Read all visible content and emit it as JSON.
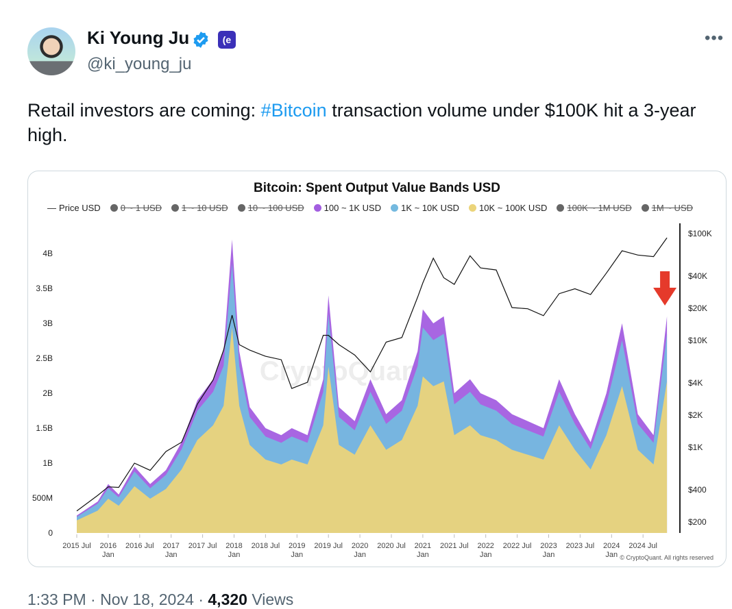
{
  "tweet": {
    "author_name": "Ki Young Ju",
    "handle": "@ki_young_ju",
    "affiliate_badge": "CQ",
    "more_icon": "ellipsis-icon",
    "text_before": "Retail investors are coming: ",
    "hashtag": "#Bitcoin",
    "text_after": " transaction volume under $100K hit a 3-year high.",
    "time": "1:33 PM",
    "date": "Nov 18, 2024",
    "views_count": "4,320",
    "views_label": "Views",
    "sep": "·"
  },
  "colors": {
    "accent": "#1d9bf0",
    "band_100_1k": "#a35ee0",
    "band_1k_10k": "#74b9df",
    "band_10k_100k": "#ebd47a",
    "price": "#111111",
    "arrow": "#e53a2b",
    "disabled": "#666666"
  },
  "chart_data": {
    "type": "area",
    "title": "Bitcoin: Spent Output Value Bands USD",
    "legend": [
      {
        "label": "Price USD",
        "active": true,
        "marker": "line"
      },
      {
        "label": "0 ~ 1 USD",
        "active": false
      },
      {
        "label": "1 ~ 10 USD",
        "active": false
      },
      {
        "label": "10 ~ 100 USD",
        "active": false
      },
      {
        "label": "100 ~ 1K USD",
        "active": true,
        "color": "#a35ee0"
      },
      {
        "label": "1K ~ 10K USD",
        "active": true,
        "color": "#74b9df"
      },
      {
        "label": "10K ~ 100K USD",
        "active": true,
        "color": "#ebd47a"
      },
      {
        "label": "100K ~ 1M USD",
        "active": false
      },
      {
        "label": "1M ~ USD",
        "active": false
      }
    ],
    "legend_placement": "top",
    "left_axis": {
      "ylim": [
        0,
        4200000000.0
      ],
      "ticks": [
        {
          "v": 0,
          "label": "0"
        },
        {
          "v": 500000000.0,
          "label": "500M"
        },
        {
          "v": 1000000000.0,
          "label": "1B"
        },
        {
          "v": 1500000000.0,
          "label": "1.5B"
        },
        {
          "v": 2000000000.0,
          "label": "2B"
        },
        {
          "v": 2500000000.0,
          "label": "2.5B"
        },
        {
          "v": 3000000000.0,
          "label": "3B"
        },
        {
          "v": 3500000000.0,
          "label": "3.5B"
        },
        {
          "v": 4000000000.0,
          "label": "4B"
        }
      ]
    },
    "right_axis": {
      "scale": "log",
      "ticks": [
        {
          "v": 200,
          "label": "$200"
        },
        {
          "v": 400,
          "label": "$400"
        },
        {
          "v": 1000,
          "label": "$1K"
        },
        {
          "v": 2000,
          "label": "$2K"
        },
        {
          "v": 4000,
          "label": "$4K"
        },
        {
          "v": 10000,
          "label": "$10K"
        },
        {
          "v": 20000,
          "label": "$20K"
        },
        {
          "v": 40000,
          "label": "$40K"
        },
        {
          "v": 100000,
          "label": "$100K"
        }
      ]
    },
    "x_ticks": [
      {
        "date": "2015-07",
        "label": "2015 Jul",
        "sub": ""
      },
      {
        "date": "2016-01",
        "label": "2016",
        "sub": "Jan"
      },
      {
        "date": "2016-07",
        "label": "2016 Jul",
        "sub": ""
      },
      {
        "date": "2017-01",
        "label": "2017",
        "sub": "Jan"
      },
      {
        "date": "2017-07",
        "label": "2017 Jul",
        "sub": ""
      },
      {
        "date": "2018-01",
        "label": "2018",
        "sub": "Jan"
      },
      {
        "date": "2018-07",
        "label": "2018 Jul",
        "sub": ""
      },
      {
        "date": "2019-01",
        "label": "2019",
        "sub": "Jan"
      },
      {
        "date": "2019-07",
        "label": "2019 Jul",
        "sub": ""
      },
      {
        "date": "2020-01",
        "label": "2020",
        "sub": "Jan"
      },
      {
        "date": "2020-07",
        "label": "2020 Jul",
        "sub": ""
      },
      {
        "date": "2021-01",
        "label": "2021",
        "sub": "Jan"
      },
      {
        "date": "2021-07",
        "label": "2021 Jul",
        "sub": ""
      },
      {
        "date": "2022-01",
        "label": "2022",
        "sub": "Jan"
      },
      {
        "date": "2022-07",
        "label": "2022 Jul",
        "sub": ""
      },
      {
        "date": "2023-01",
        "label": "2023",
        "sub": "Jan"
      },
      {
        "date": "2023-07",
        "label": "2023 Jul",
        "sub": ""
      },
      {
        "date": "2024-01",
        "label": "2024",
        "sub": "Jan"
      },
      {
        "date": "2024-07",
        "label": "2024 Jul",
        "sub": ""
      }
    ],
    "x": [
      "2015-07",
      "2015-11",
      "2016-01",
      "2016-03",
      "2016-06",
      "2016-09",
      "2016-12",
      "2017-03",
      "2017-06",
      "2017-09",
      "2017-11",
      "2017-12-20",
      "2018-02",
      "2018-04",
      "2018-07",
      "2018-10",
      "2018-12",
      "2019-03",
      "2019-06",
      "2019-07",
      "2019-09",
      "2019-12",
      "2020-03",
      "2020-06",
      "2020-09",
      "2020-12",
      "2021-01",
      "2021-03",
      "2021-05",
      "2021-07",
      "2021-10",
      "2021-12",
      "2022-03",
      "2022-06",
      "2022-09",
      "2022-12",
      "2023-03",
      "2023-06",
      "2023-09",
      "2023-12",
      "2024-03",
      "2024-06",
      "2024-09",
      "2024-11-18"
    ],
    "series": [
      {
        "name": "10K ~ 100K USD",
        "unit": "B USD",
        "values": [
          0.18,
          0.32,
          0.49,
          0.39,
          0.67,
          0.49,
          0.63,
          0.91,
          1.33,
          1.54,
          1.82,
          2.94,
          1.82,
          1.26,
          1.05,
          0.98,
          1.05,
          0.98,
          1.54,
          2.38,
          1.26,
          1.12,
          1.54,
          1.19,
          1.33,
          1.82,
          2.24,
          2.1,
          2.17,
          1.4,
          1.54,
          1.4,
          1.33,
          1.19,
          1.12,
          1.05,
          1.54,
          1.19,
          0.91,
          1.4,
          2.1,
          1.19,
          0.98,
          2.17
        ]
      },
      {
        "name": "1K ~ 10K USD",
        "unit": "B USD",
        "values": [
          0.05,
          0.1,
          0.15,
          0.12,
          0.21,
          0.15,
          0.2,
          0.29,
          0.42,
          0.48,
          0.57,
          0.92,
          0.57,
          0.4,
          0.33,
          0.31,
          0.33,
          0.31,
          0.48,
          0.75,
          0.4,
          0.35,
          0.48,
          0.37,
          0.42,
          0.57,
          0.7,
          0.66,
          0.68,
          0.44,
          0.48,
          0.44,
          0.42,
          0.37,
          0.35,
          0.33,
          0.48,
          0.37,
          0.29,
          0.44,
          0.66,
          0.37,
          0.31,
          0.68
        ]
      },
      {
        "name": "100 ~ 1K USD",
        "unit": "B USD",
        "values": [
          0.02,
          0.03,
          0.06,
          0.04,
          0.07,
          0.06,
          0.07,
          0.1,
          0.15,
          0.18,
          0.21,
          0.34,
          0.21,
          0.14,
          0.12,
          0.11,
          0.12,
          0.11,
          0.18,
          0.27,
          0.14,
          0.13,
          0.18,
          0.14,
          0.15,
          0.21,
          0.26,
          0.24,
          0.25,
          0.16,
          0.18,
          0.16,
          0.15,
          0.14,
          0.13,
          0.12,
          0.18,
          0.14,
          0.1,
          0.16,
          0.24,
          0.14,
          0.11,
          0.25
        ]
      },
      {
        "name": "Price USD",
        "axis": "right",
        "values": [
          250,
          350,
          420,
          415,
          700,
          600,
          900,
          1100,
          2500,
          4200,
          8000,
          17000,
          9000,
          8000,
          7000,
          6500,
          3500,
          4000,
          11000,
          11000,
          9000,
          7200,
          5000,
          9500,
          10500,
          25000,
          34000,
          58000,
          38000,
          33000,
          61000,
          47000,
          45000,
          20000,
          19500,
          16800,
          27000,
          30000,
          26500,
          42000,
          68000,
          62000,
          60000,
          90000
        ]
      }
    ],
    "annotation": {
      "type": "down-arrow",
      "date": "2024-11-18",
      "color": "#e53a2b"
    },
    "watermark": "CryptoQuant",
    "credit": "© CryptoQuant. All rights reserved",
    "grid": false
  }
}
